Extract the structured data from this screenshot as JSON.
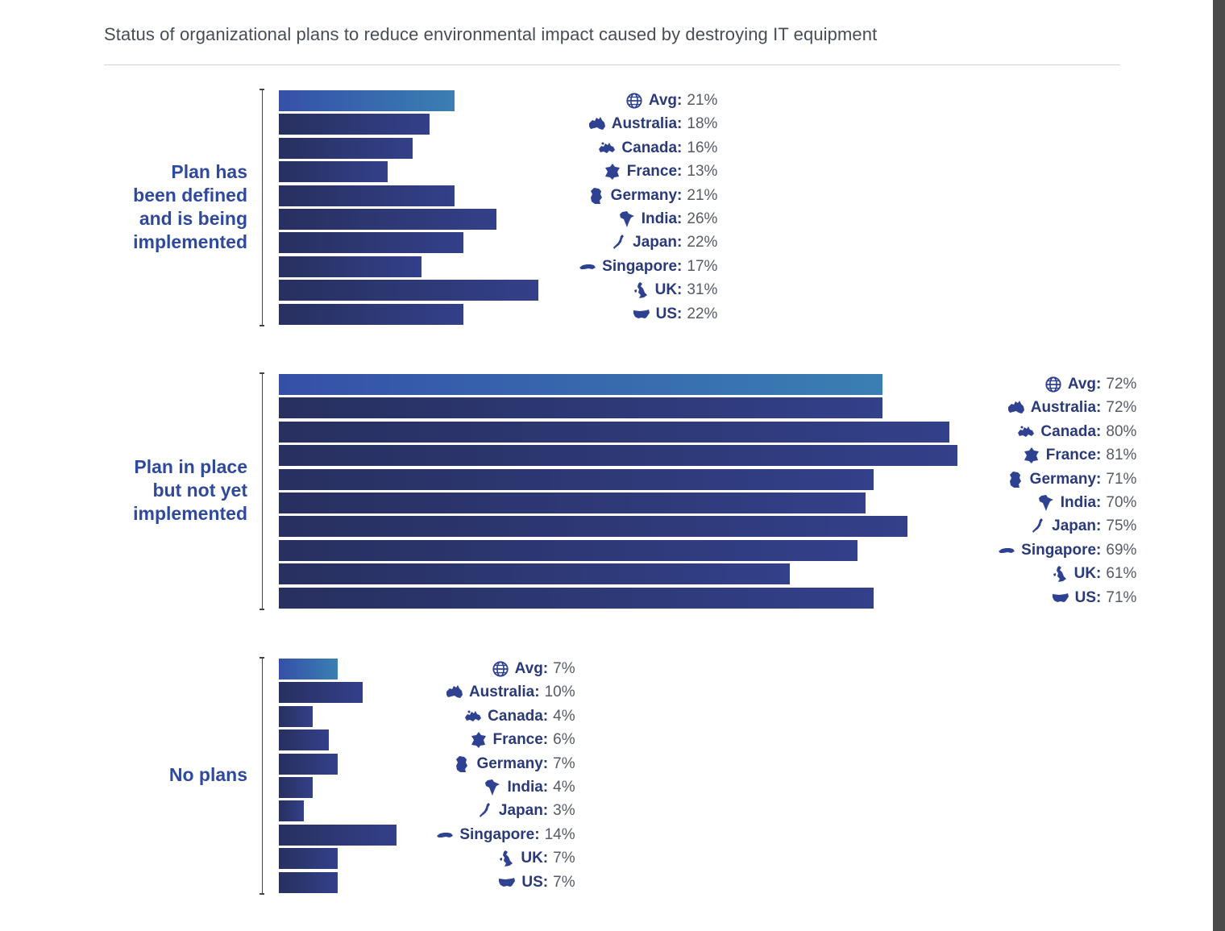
{
  "colors": {
    "bar": "#2c3670",
    "avg_bar_start": "#3550a8",
    "avg_bar_end": "#3a7fb3",
    "label": "#2f4a9c",
    "country": "#2a3a78",
    "value": "#555a66"
  },
  "chart_data": {
    "type": "bar",
    "orientation": "horizontal",
    "title": "Status of organizational plans to reduce environmental impact caused by destroying IT equipment",
    "unit": "%",
    "categories": [
      "Avg",
      "Australia",
      "Canada",
      "France",
      "Germany",
      "India",
      "Japan",
      "Singapore",
      "UK",
      "US"
    ],
    "icons": [
      "globe-icon",
      "australia-map-icon",
      "canada-map-icon",
      "france-map-icon",
      "germany-map-icon",
      "india-map-icon",
      "japan-map-icon",
      "singapore-map-icon",
      "uk-map-icon",
      "us-map-icon"
    ],
    "series": [
      {
        "name": "Plan has\nbeen defined\nand is being\nimplemented",
        "values": [
          21,
          18,
          16,
          13,
          21,
          26,
          22,
          17,
          31,
          22
        ],
        "labels": [
          "21%",
          "18%",
          "16%",
          "13%",
          "21%",
          "26%",
          "22%",
          "17%",
          "31%",
          "22%"
        ]
      },
      {
        "name": "Plan in place\nbut not yet\nimplemented",
        "values": [
          72,
          72,
          80,
          81,
          71,
          70,
          75,
          69,
          61,
          71
        ],
        "labels": [
          "72%",
          "72%",
          "80%",
          "81%",
          "71%",
          "70%",
          "75%",
          "69%",
          "61%",
          "71%"
        ]
      },
      {
        "name": "No plans",
        "values": [
          7,
          10,
          4,
          6,
          7,
          4,
          3,
          14,
          7,
          7
        ],
        "labels": [
          "7%",
          "10%",
          "4%",
          "6%",
          "7%",
          "4%",
          "3%",
          "14%",
          "7%",
          "7%"
        ]
      }
    ],
    "xlim": [
      0,
      100
    ],
    "grid": false,
    "legend": "none"
  }
}
